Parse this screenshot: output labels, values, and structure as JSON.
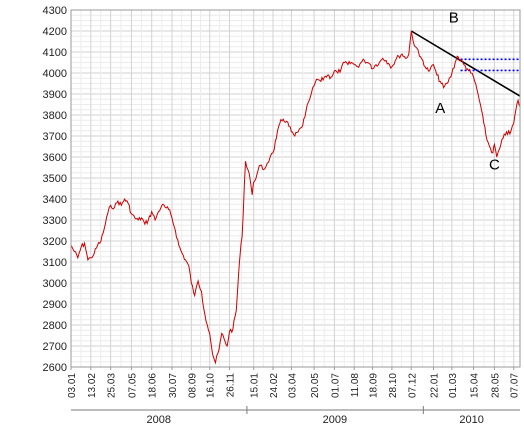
{
  "chart_data": {
    "type": "line",
    "title": "",
    "xlabel": "",
    "ylabel": "",
    "ylim": [
      2600,
      4300
    ],
    "y_ticks": [
      2600,
      2700,
      2800,
      2900,
      3000,
      3100,
      3200,
      3300,
      3400,
      3500,
      3600,
      3700,
      3800,
      3900,
      4000,
      4100,
      4200,
      4300
    ],
    "y_tick_labels": [
      "2600",
      "2700",
      "2800",
      "2900",
      "3000",
      "3100",
      "3200",
      "3300",
      "3400",
      "3500",
      "3600",
      "3700",
      "3800",
      "3900",
      "4000",
      "4100",
      "4200",
      "4300"
    ],
    "x_range": [
      "2008-01-03",
      "2010-07-20"
    ],
    "x_tick_labels": [
      {
        "date": "2008-01-03",
        "label": "03.01"
      },
      {
        "date": "2008-02-13",
        "label": "13.02"
      },
      {
        "date": "2008-03-25",
        "label": "25.03"
      },
      {
        "date": "2008-05-07",
        "label": "07.05"
      },
      {
        "date": "2008-06-18",
        "label": "18.06"
      },
      {
        "date": "2008-07-30",
        "label": "30.07"
      },
      {
        "date": "2008-09-08",
        "label": "08.09"
      },
      {
        "date": "2008-10-16",
        "label": "16.10"
      },
      {
        "date": "2008-11-26",
        "label": "26.11"
      },
      {
        "date": "2009-01-15",
        "label": "15.01"
      },
      {
        "date": "2009-02-24",
        "label": "24.02"
      },
      {
        "date": "2009-04-03",
        "label": "03.04"
      },
      {
        "date": "2009-05-20",
        "label": "20.05"
      },
      {
        "date": "2009-07-01",
        "label": "01.07"
      },
      {
        "date": "2009-08-11",
        "label": "11.08"
      },
      {
        "date": "2009-09-18",
        "label": "18.09"
      },
      {
        "date": "2009-10-28",
        "label": "28.10"
      },
      {
        "date": "2009-12-07",
        "label": "07.12"
      },
      {
        "date": "2010-01-22",
        "label": "22.01"
      },
      {
        "date": "2010-03-01",
        "label": "01.03"
      },
      {
        "date": "2010-04-15",
        "label": "15.04"
      },
      {
        "date": "2010-05-28",
        "label": "28.05"
      },
      {
        "date": "2010-07-07",
        "label": "07.07"
      }
    ],
    "year_labels": [
      {
        "label": "2008",
        "start": "2008-01-03",
        "end": "2008-12-31"
      },
      {
        "label": "2009",
        "start": "2009-01-01",
        "end": "2009-12-31"
      },
      {
        "label": "2010",
        "start": "2010-01-01",
        "end": "2010-07-20"
      }
    ],
    "grid": true,
    "series": [
      {
        "color": "#cc0000",
        "points": [
          [
            "2008-01-03",
            3180
          ],
          [
            "2008-01-10",
            3150
          ],
          [
            "2008-01-17",
            3120
          ],
          [
            "2008-01-24",
            3170
          ],
          [
            "2008-01-31",
            3190
          ],
          [
            "2008-02-07",
            3110
          ],
          [
            "2008-02-13",
            3120
          ],
          [
            "2008-02-20",
            3140
          ],
          [
            "2008-02-27",
            3180
          ],
          [
            "2008-03-05",
            3200
          ],
          [
            "2008-03-12",
            3260
          ],
          [
            "2008-03-19",
            3330
          ],
          [
            "2008-03-25",
            3370
          ],
          [
            "2008-04-02",
            3360
          ],
          [
            "2008-04-09",
            3390
          ],
          [
            "2008-04-16",
            3370
          ],
          [
            "2008-04-23",
            3400
          ],
          [
            "2008-04-30",
            3380
          ],
          [
            "2008-05-07",
            3330
          ],
          [
            "2008-05-14",
            3310
          ],
          [
            "2008-05-21",
            3300
          ],
          [
            "2008-05-28",
            3310
          ],
          [
            "2008-06-04",
            3280
          ],
          [
            "2008-06-11",
            3300
          ],
          [
            "2008-06-18",
            3340
          ],
          [
            "2008-06-25",
            3300
          ],
          [
            "2008-07-02",
            3340
          ],
          [
            "2008-07-09",
            3370
          ],
          [
            "2008-07-16",
            3360
          ],
          [
            "2008-07-23",
            3350
          ],
          [
            "2008-07-30",
            3310
          ],
          [
            "2008-08-06",
            3250
          ],
          [
            "2008-08-13",
            3180
          ],
          [
            "2008-08-20",
            3140
          ],
          [
            "2008-08-27",
            3110
          ],
          [
            "2008-09-03",
            3080
          ],
          [
            "2008-09-08",
            3000
          ],
          [
            "2008-09-15",
            2940
          ],
          [
            "2008-09-22",
            3010
          ],
          [
            "2008-09-29",
            2960
          ],
          [
            "2008-10-06",
            2850
          ],
          [
            "2008-10-11",
            2800
          ],
          [
            "2008-10-16",
            2760
          ],
          [
            "2008-10-22",
            2660
          ],
          [
            "2008-10-28",
            2620
          ],
          [
            "2008-11-04",
            2680
          ],
          [
            "2008-11-10",
            2760
          ],
          [
            "2008-11-17",
            2720
          ],
          [
            "2008-11-21",
            2700
          ],
          [
            "2008-11-26",
            2770
          ],
          [
            "2008-12-03",
            2780
          ],
          [
            "2008-12-10",
            2870
          ],
          [
            "2008-12-15",
            3050
          ],
          [
            "2008-12-18",
            3140
          ],
          [
            "2008-12-22",
            3220
          ],
          [
            "2008-12-29",
            3580
          ],
          [
            "2009-01-06",
            3520
          ],
          [
            "2009-01-12",
            3420
          ],
          [
            "2009-01-15",
            3480
          ],
          [
            "2009-01-22",
            3520
          ],
          [
            "2009-01-29",
            3560
          ],
          [
            "2009-02-05",
            3540
          ],
          [
            "2009-02-12",
            3570
          ],
          [
            "2009-02-18",
            3600
          ],
          [
            "2009-02-24",
            3620
          ],
          [
            "2009-03-03",
            3690
          ],
          [
            "2009-03-10",
            3760
          ],
          [
            "2009-03-17",
            3780
          ],
          [
            "2009-03-24",
            3770
          ],
          [
            "2009-04-03",
            3720
          ],
          [
            "2009-04-10",
            3700
          ],
          [
            "2009-04-17",
            3720
          ],
          [
            "2009-04-24",
            3740
          ],
          [
            "2009-05-01",
            3790
          ],
          [
            "2009-05-08",
            3860
          ],
          [
            "2009-05-14",
            3900
          ],
          [
            "2009-05-20",
            3940
          ],
          [
            "2009-05-27",
            3970
          ],
          [
            "2009-06-03",
            3960
          ],
          [
            "2009-06-10",
            3980
          ],
          [
            "2009-06-17",
            3990
          ],
          [
            "2009-06-24",
            3980
          ],
          [
            "2009-07-01",
            4010
          ],
          [
            "2009-07-08",
            4000
          ],
          [
            "2009-07-15",
            4020
          ],
          [
            "2009-07-22",
            4050
          ],
          [
            "2009-07-29",
            4040
          ],
          [
            "2009-08-05",
            4050
          ],
          [
            "2009-08-11",
            4040
          ],
          [
            "2009-08-18",
            4030
          ],
          [
            "2009-08-25",
            4050
          ],
          [
            "2009-09-01",
            4060
          ],
          [
            "2009-09-08",
            4050
          ],
          [
            "2009-09-14",
            4040
          ],
          [
            "2009-09-18",
            4020
          ],
          [
            "2009-09-25",
            4040
          ],
          [
            "2009-10-02",
            4050
          ],
          [
            "2009-10-09",
            4070
          ],
          [
            "2009-10-16",
            4060
          ],
          [
            "2009-10-23",
            4040
          ],
          [
            "2009-10-28",
            4030
          ],
          [
            "2009-11-04",
            4060
          ],
          [
            "2009-11-11",
            4080
          ],
          [
            "2009-11-18",
            4090
          ],
          [
            "2009-11-25",
            4070
          ],
          [
            "2009-12-02",
            4090
          ],
          [
            "2009-12-07",
            4200
          ],
          [
            "2009-12-11",
            4150
          ],
          [
            "2009-12-18",
            4120
          ],
          [
            "2009-12-24",
            4080
          ],
          [
            "2009-12-31",
            4060
          ],
          [
            "2010-01-07",
            4020
          ],
          [
            "2010-01-14",
            4010
          ],
          [
            "2010-01-22",
            4040
          ],
          [
            "2010-01-29",
            3990
          ],
          [
            "2010-02-05",
            3960
          ],
          [
            "2010-02-12",
            3930
          ],
          [
            "2010-02-19",
            3950
          ],
          [
            "2010-02-26",
            3980
          ],
          [
            "2010-03-01",
            4000
          ],
          [
            "2010-03-08",
            4050
          ],
          [
            "2010-03-12",
            4080
          ],
          [
            "2010-03-19",
            4060
          ],
          [
            "2010-03-26",
            4040
          ],
          [
            "2010-04-02",
            4020
          ],
          [
            "2010-04-09",
            4000
          ],
          [
            "2010-04-15",
            3980
          ],
          [
            "2010-04-22",
            3920
          ],
          [
            "2010-04-29",
            3850
          ],
          [
            "2010-05-06",
            3760
          ],
          [
            "2010-05-13",
            3680
          ],
          [
            "2010-05-20",
            3640
          ],
          [
            "2010-05-25",
            3620
          ],
          [
            "2010-05-28",
            3660
          ],
          [
            "2010-06-02",
            3600
          ],
          [
            "2010-06-08",
            3640
          ],
          [
            "2010-06-15",
            3690
          ],
          [
            "2010-06-22",
            3720
          ],
          [
            "2010-06-29",
            3710
          ],
          [
            "2010-07-07",
            3760
          ],
          [
            "2010-07-12",
            3830
          ],
          [
            "2010-07-16",
            3870
          ],
          [
            "2010-07-20",
            3840
          ]
        ]
      }
    ],
    "overlays": {
      "trendline": {
        "color": "#000000",
        "start": [
          "2009-12-07",
          4200
        ],
        "end": [
          "2010-07-20",
          3890
        ]
      },
      "dotted_levels": [
        {
          "color": "#0000ff",
          "start": "2010-03-19",
          "end": "2010-07-20",
          "y": 4065
        },
        {
          "color": "#0000ff",
          "start": "2010-03-19",
          "end": "2010-07-20",
          "y": 4012
        }
      ]
    },
    "annotations": [
      {
        "text": "A",
        "x": "2010-02-05",
        "y": 3810
      },
      {
        "text": "B",
        "x": "2010-03-05",
        "y": 4240
      },
      {
        "text": "C",
        "x": "2010-05-28",
        "y": 3540
      }
    ]
  }
}
